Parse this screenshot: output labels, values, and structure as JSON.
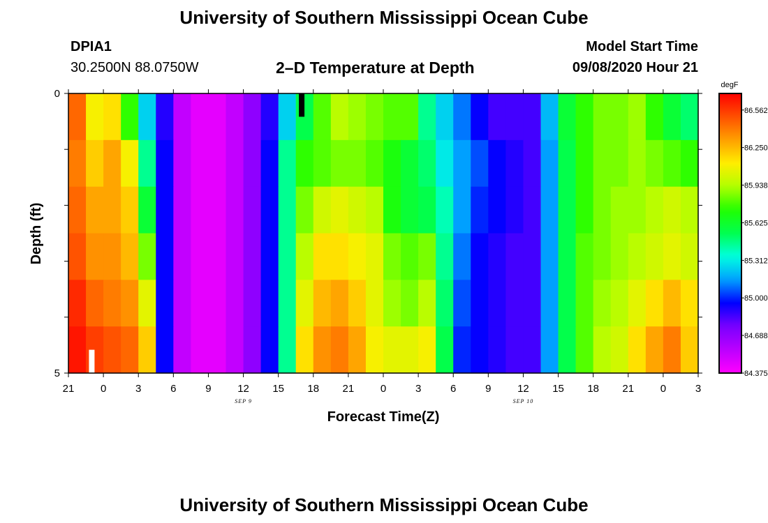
{
  "header": {
    "title": "University of Southern Mississippi Ocean Cube",
    "station": "DPIA1",
    "coordinates": "30.2500N 88.0750W",
    "plot_title": "2–D Temperature at Depth",
    "model_start_label": "Model Start Time",
    "model_start_value": "09/08/2020 Hour 21"
  },
  "footer": {
    "title": "University of Southern Mississippi Ocean Cube"
  },
  "colors": {
    "scale": [
      "#ff00ff",
      "#bb00ff",
      "#7a00ff",
      "#0000ff",
      "#00a0ff",
      "#00ffe0",
      "#00ff50",
      "#20ff00",
      "#b0ff00",
      "#ffee00",
      "#ffa000",
      "#ff5000",
      "#ff0000"
    ]
  },
  "chart_data": {
    "type": "heatmap",
    "xlabel": "Forecast Time(Z)",
    "ylabel": "Depth (ft)",
    "y_tick_labels": [
      "0",
      "5"
    ],
    "ylim": [
      0,
      5
    ],
    "x_tick_labels": [
      "21",
      "0",
      "3",
      "6",
      "9",
      "12",
      "15",
      "18",
      "21",
      "0",
      "3",
      "6",
      "9",
      "12",
      "15",
      "18",
      "21",
      "0",
      "3"
    ],
    "date_labels": [
      {
        "text": "SEP 9",
        "hour_index": 15
      },
      {
        "text": "SEP 10",
        "hour_index": 39
      }
    ],
    "hours_from_start": [
      0,
      3,
      6,
      9,
      12,
      15,
      18,
      21,
      24,
      27,
      30,
      33,
      36,
      39,
      42,
      45,
      48,
      51,
      54
    ],
    "depth_layers": [
      0,
      1,
      2,
      3,
      4,
      5
    ],
    "units": "degF",
    "colorbar_labels": [
      "86.562",
      "86.250",
      "85.938",
      "85.625",
      "85.312",
      "85.000",
      "84.688",
      "84.375"
    ],
    "vmin": 84.375,
    "vmax": 86.7,
    "rows": [
      [
        86.45,
        86.1,
        86.15,
        85.75,
        85.25,
        84.9,
        84.55,
        84.45,
        84.45,
        84.55,
        84.7,
        84.9,
        85.25,
        85.55,
        85.8,
        85.95,
        85.9,
        85.85,
        85.8,
        85.8,
        85.45,
        85.25,
        85.1,
        84.95,
        84.85,
        84.85,
        84.85,
        85.2,
        85.6,
        85.75,
        85.85,
        85.85,
        85.9,
        85.75,
        85.6,
        85.5
      ],
      [
        86.4,
        86.2,
        86.3,
        86.1,
        85.45,
        84.95,
        84.55,
        84.45,
        84.45,
        84.55,
        84.7,
        84.95,
        85.45,
        85.75,
        85.8,
        85.85,
        85.85,
        85.8,
        85.7,
        85.6,
        85.5,
        85.3,
        85.15,
        85.05,
        84.95,
        84.9,
        84.85,
        85.15,
        85.55,
        85.75,
        85.85,
        85.85,
        85.9,
        85.85,
        85.8,
        85.75
      ],
      [
        86.45,
        86.3,
        86.3,
        86.2,
        85.6,
        84.95,
        84.55,
        84.45,
        84.45,
        84.55,
        84.7,
        84.95,
        85.45,
        85.85,
        86.0,
        86.05,
        86.0,
        85.95,
        85.7,
        85.6,
        85.55,
        85.4,
        85.15,
        85.0,
        84.95,
        84.9,
        84.85,
        85.15,
        85.55,
        85.75,
        85.85,
        85.9,
        85.9,
        85.95,
        86.0,
        85.95
      ],
      [
        86.5,
        86.35,
        86.35,
        86.25,
        85.85,
        84.95,
        84.55,
        84.45,
        84.45,
        84.55,
        84.7,
        84.95,
        85.45,
        85.95,
        86.15,
        86.15,
        86.1,
        86.05,
        85.85,
        85.8,
        85.85,
        85.45,
        85.1,
        84.95,
        84.9,
        84.85,
        84.85,
        85.15,
        85.55,
        85.8,
        85.85,
        85.9,
        85.95,
        86.0,
        86.05,
        86.0
      ],
      [
        86.6,
        86.45,
        86.4,
        86.35,
        86.05,
        84.95,
        84.55,
        84.45,
        84.45,
        84.55,
        84.7,
        84.95,
        85.45,
        86.05,
        86.25,
        86.3,
        86.2,
        86.05,
        85.9,
        85.85,
        85.95,
        85.5,
        85.05,
        84.95,
        84.9,
        84.85,
        84.85,
        85.15,
        85.55,
        85.8,
        85.9,
        85.95,
        86.05,
        86.15,
        86.25,
        86.15
      ],
      [
        86.65,
        86.55,
        86.5,
        86.45,
        86.2,
        84.95,
        84.55,
        84.45,
        84.45,
        84.55,
        84.7,
        84.95,
        85.45,
        86.15,
        86.35,
        86.4,
        86.3,
        86.1,
        86.05,
        86.05,
        86.1,
        85.55,
        85.0,
        84.95,
        84.9,
        84.85,
        84.85,
        85.15,
        85.55,
        85.8,
        85.95,
        86.0,
        86.15,
        86.3,
        86.4,
        86.2
      ]
    ],
    "missing_cells": [
      {
        "row": 0,
        "hour": 20
      },
      {
        "row": 5,
        "hour": 2
      }
    ]
  }
}
